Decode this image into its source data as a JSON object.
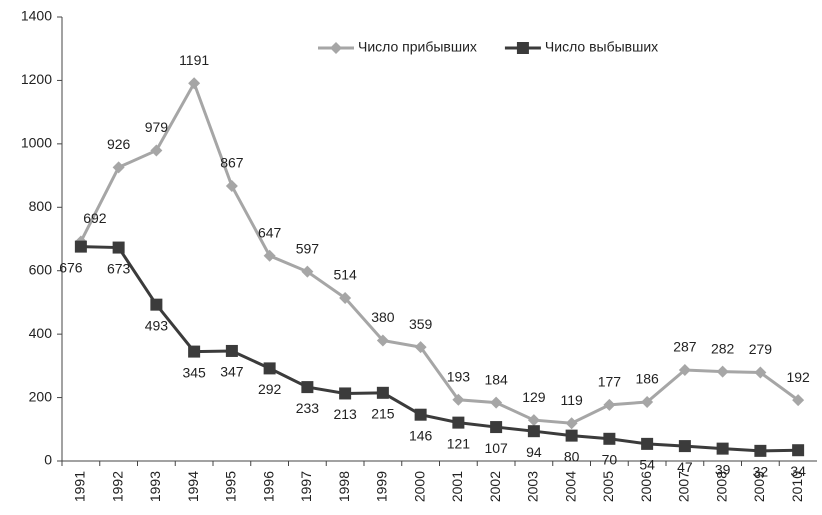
{
  "chart_data": {
    "type": "line",
    "categories": [
      "1991",
      "1992",
      "1993",
      "1994",
      "1995",
      "1996",
      "1997",
      "1998",
      "1999",
      "2000",
      "2001",
      "2002",
      "2003",
      "2004",
      "2005",
      "2006",
      "2007",
      "2008",
      "2009",
      "2010"
    ],
    "series": [
      {
        "name": "Число прибывших",
        "color": "#a6a6a6",
        "marker": "diamond",
        "values": [
          692,
          926,
          979,
          1191,
          867,
          647,
          597,
          514,
          380,
          359,
          193,
          184,
          129,
          119,
          177,
          186,
          287,
          282,
          279,
          192
        ]
      },
      {
        "name": "Число выбывших",
        "color": "#3b3b3b",
        "marker": "square",
        "values": [
          676,
          673,
          493,
          345,
          347,
          292,
          233,
          213,
          215,
          146,
          121,
          107,
          94,
          80,
          70,
          54,
          47,
          39,
          32,
          34
        ]
      }
    ],
    "ylim": [
      0,
      1400
    ],
    "yticks": [
      0,
      200,
      400,
      600,
      800,
      1000,
      1200,
      1400
    ],
    "grid": false,
    "legend": "top"
  }
}
